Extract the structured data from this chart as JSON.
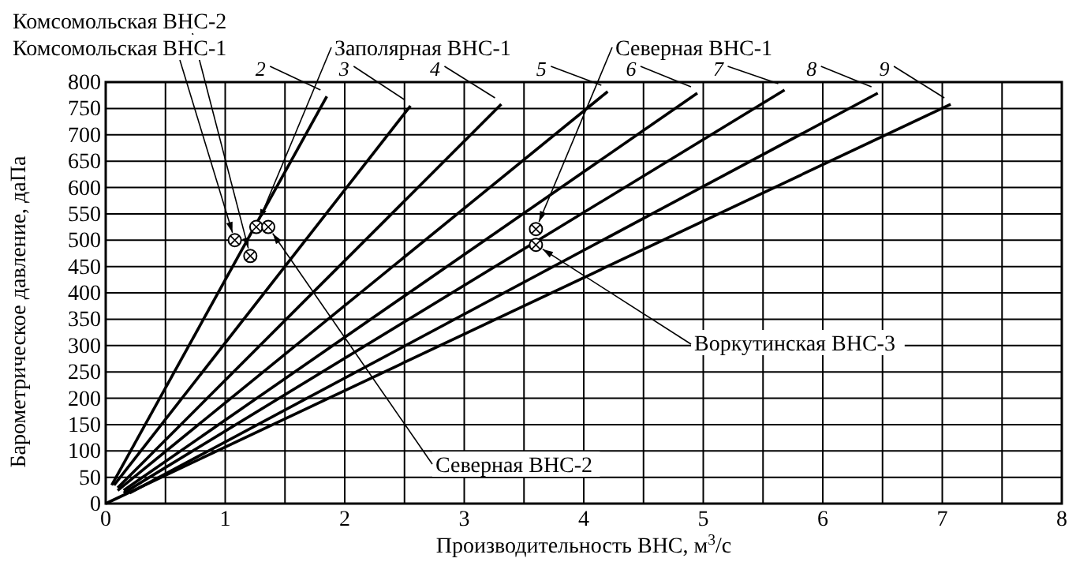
{
  "chart_data": {
    "type": "line",
    "xlabel": "Производительность ВНС, м$^{3}$/с",
    "ylabel": "Барометрическое давление, даПа",
    "xlim": [
      0,
      8
    ],
    "ylim": [
      0,
      800
    ],
    "xticks": [
      0,
      {
        "value": 0.5,
        "label": null
      },
      1,
      {
        "value": 1.5,
        "label": null
      },
      2,
      {
        "value": 2.5,
        "label": null
      },
      3,
      {
        "value": 3.5,
        "label": null
      },
      4,
      {
        "value": 4.5,
        "label": null
      },
      5,
      {
        "value": 5.5,
        "label": null
      },
      6,
      {
        "value": 6.5,
        "label": null
      },
      7,
      {
        "value": 7.5,
        "label": null
      },
      8
    ],
    "yticks": [
      0,
      50,
      100,
      150,
      200,
      250,
      300,
      350,
      400,
      450,
      500,
      550,
      600,
      650,
      700,
      750,
      800
    ],
    "grid": true,
    "legend": "top",
    "line_style": "solid",
    "marker": "none",
    "series": [
      {
        "name": "2",
        "color": "#000000",
        "x": [
          0.05,
          1.85
        ],
        "values": [
          35,
          773
        ]
      },
      {
        "name": "3",
        "color": "#000000",
        "x": [
          0.07,
          2.55
        ],
        "values": [
          35,
          755
        ]
      },
      {
        "name": "4",
        "color": "#000000",
        "x": [
          0.1,
          3.31
        ],
        "values": [
          30,
          758
        ]
      },
      {
        "name": "5",
        "color": "#000000",
        "x": [
          0.1,
          4.2
        ],
        "values": [
          25,
          782
        ]
      },
      {
        "name": "6",
        "color": "#000000",
        "x": [
          0.15,
          4.95
        ],
        "values": [
          25,
          779
        ]
      },
      {
        "name": "7",
        "color": "#000000",
        "x": [
          0.15,
          5.68
        ],
        "values": [
          20,
          785
        ]
      },
      {
        "name": "8",
        "color": "#000000",
        "x": [
          0.2,
          6.46
        ],
        "values": [
          20,
          779
        ]
      },
      {
        "name": "9",
        "color": "#000000",
        "x": [
          0,
          7.07
        ],
        "values": [
          0,
          758
        ]
      },
      {
        "type": "scatter",
        "color": "#000000",
        "marker": "circle",
        "x": [
          1.08,
          1.21,
          1.26,
          1.36,
          3.6,
          3.6
        ],
        "values": [
          500,
          470,
          525,
          525,
          521,
          491
        ]
      }
    ],
    "annotations": [
      {
        "text": "Комсомольская ВНС-2",
        "x": 1.21,
        "y": 470
      },
      {
        "text": "Комсомольская ВНС-1",
        "x": 1.08,
        "y": 500
      },
      {
        "text": "Заполярная ВНС-1",
        "x": 1.26,
        "y": 525
      },
      {
        "text": "Северная ВНС-1",
        "x": 3.6,
        "y": 521
      },
      {
        "text": "Воркутинская ВНС-3",
        "x": 3.6,
        "y": 491
      },
      {
        "text": "Северная ВНС-2",
        "x": 1.36,
        "y": 525
      }
    ]
  }
}
